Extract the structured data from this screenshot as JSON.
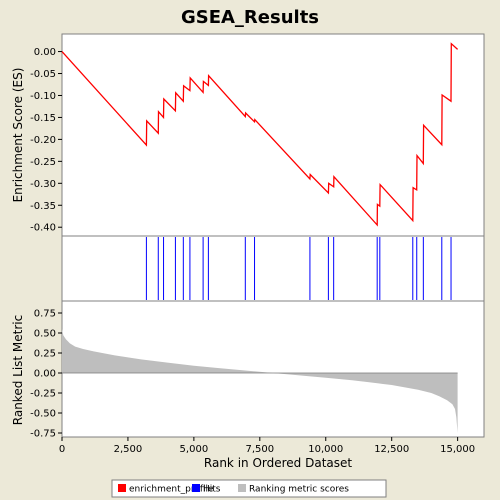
{
  "chart_data": {
    "type": "line",
    "title": "GSEA_Results",
    "xlabel": "Rank in Ordered Dataset",
    "xlim": [
      0,
      16000
    ],
    "x_ticks": [
      0,
      2500,
      5000,
      7500,
      10000,
      12500,
      15000
    ],
    "x_tick_labels": [
      "0",
      "2,500",
      "5,000",
      "7,500",
      "10,000",
      "12,500",
      "15,000"
    ],
    "enrichment_panel": {
      "ylabel": "Enrichment Score (ES)",
      "ylim": [
        -0.42,
        0.04
      ],
      "y_ticks": [
        0.0,
        -0.05,
        -0.1,
        -0.15,
        -0.2,
        -0.25,
        -0.3,
        -0.35,
        -0.4
      ],
      "y_tick_labels": [
        "0.00",
        "-0.05",
        "-0.10",
        "-0.15",
        "-0.20",
        "-0.25",
        "-0.30",
        "-0.35",
        "-0.40"
      ],
      "series": [
        {
          "name": "enrichment_profile",
          "color": "#FF0000",
          "x": [
            0,
            3200,
            3210,
            3650,
            3660,
            3850,
            3860,
            4300,
            4310,
            4600,
            4610,
            4850,
            4860,
            5350,
            5360,
            5550,
            5560,
            6950,
            6960,
            7300,
            7310,
            9400,
            9410,
            10100,
            10110,
            10300,
            10310,
            11950,
            11960,
            12050,
            12060,
            13300,
            13310,
            13450,
            13460,
            13700,
            13710,
            14400,
            14410,
            14750,
            14760,
            15000
          ],
          "y": [
            0.0,
            -0.213,
            -0.158,
            -0.186,
            -0.137,
            -0.15,
            -0.108,
            -0.135,
            -0.094,
            -0.113,
            -0.078,
            -0.089,
            -0.06,
            -0.093,
            -0.068,
            -0.077,
            -0.055,
            -0.148,
            -0.14,
            -0.16,
            -0.155,
            -0.29,
            -0.28,
            -0.322,
            -0.3,
            -0.308,
            -0.285,
            -0.395,
            -0.348,
            -0.352,
            -0.303,
            -0.385,
            -0.31,
            -0.315,
            -0.237,
            -0.255,
            -0.168,
            -0.212,
            -0.099,
            -0.113,
            0.018,
            0.005
          ]
        }
      ]
    },
    "hits": [
      3200,
      3650,
      3850,
      4300,
      4600,
      4850,
      5350,
      5550,
      6950,
      7300,
      9400,
      10100,
      10300,
      11950,
      12050,
      13300,
      13450,
      13700,
      14400,
      14750
    ],
    "metric_panel": {
      "ylabel": "Ranked List Metric",
      "ylim": [
        -0.8,
        0.9
      ],
      "y_ticks": [
        0.75,
        0.5,
        0.25,
        0.0,
        -0.25,
        -0.5,
        -0.75
      ],
      "y_tick_labels": [
        "0.75",
        "0.50",
        "0.25",
        "0.00",
        "-0.25",
        "-0.50",
        "-0.75"
      ],
      "x": [
        0,
        50,
        150,
        300,
        500,
        800,
        1200,
        2000,
        3000,
        4000,
        5000,
        6000,
        7000,
        8000,
        9000,
        10000,
        11000,
        12000,
        12500,
        13000,
        13500,
        14000,
        14300,
        14600,
        14800,
        14900,
        14950,
        15000
      ],
      "y": [
        0.55,
        0.47,
        0.42,
        0.37,
        0.33,
        0.3,
        0.27,
        0.22,
        0.17,
        0.13,
        0.09,
        0.06,
        0.03,
        -0.0,
        -0.03,
        -0.06,
        -0.09,
        -0.13,
        -0.15,
        -0.18,
        -0.21,
        -0.25,
        -0.29,
        -0.34,
        -0.39,
        -0.45,
        -0.55,
        -0.75
      ]
    },
    "legend": {
      "position": "bottom",
      "entries": [
        {
          "label": "enrichment_profile",
          "color": "#FF0000"
        },
        {
          "label": "Hits",
          "color": "#0000FF"
        },
        {
          "label": "Ranking metric scores",
          "color": "#BEBEBE"
        }
      ]
    }
  }
}
